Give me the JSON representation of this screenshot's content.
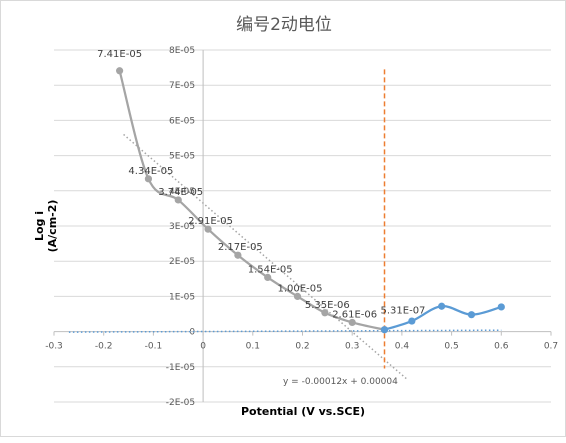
{
  "chart_data": {
    "type": "scatter",
    "title": "编号2动电位",
    "xlabel": "Potential  (V vs.SCE)",
    "ylabel_line1": "Log i",
    "ylabel_line2": "(A/cm-2)",
    "xlim": [
      -0.3,
      0.7
    ],
    "ylim": [
      -2e-05,
      8e-05
    ],
    "x_ticks": [
      -0.3,
      -0.2,
      -0.1,
      0,
      0.1,
      0.2,
      0.3,
      0.4,
      0.5,
      0.6,
      0.7
    ],
    "x_tick_labels": [
      "-0.3",
      "-0.2",
      "-0.1",
      "0",
      "0.1",
      "0.2",
      "0.3",
      "0.4",
      "0.5",
      "0.6",
      "0.7"
    ],
    "y_ticks": [
      -2e-05,
      -1e-05,
      0,
      1e-05,
      2e-05,
      3e-05,
      4e-05,
      5e-05,
      6e-05,
      7e-05,
      8e-05
    ],
    "y_tick_labels": [
      "-2E-05",
      "-1E-05",
      "0",
      "1E-05",
      "2E-05",
      "3E-05",
      "4E-05",
      "5E-05",
      "6E-05",
      "7E-05",
      "8E-05"
    ],
    "gridlines": "horizontal",
    "series": [
      {
        "color": "#a5a5a5",
        "x": [
          -0.168,
          -0.11,
          -0.05,
          0.01,
          0.07,
          0.13,
          0.19,
          0.245,
          0.3,
          0.365
        ],
        "y": [
          7.41e-05,
          4.34e-05,
          3.74e-05,
          2.91e-05,
          2.17e-05,
          1.54e-05,
          1e-05,
          5.35e-06,
          2.61e-06,
          5.31e-07
        ],
        "labels": [
          "7.41E-05",
          "4.34E-05",
          "3.74E-05",
          "2.91E-05",
          "2.17E-05",
          "1.54E-05",
          "1.00E-05",
          "5.35E-06",
          "2.61E-06",
          "5.31E-07"
        ]
      },
      {
        "color": "#5b9bd5",
        "x": [
          0.365,
          0.42,
          0.48,
          0.54,
          0.6
        ],
        "y": [
          5.31e-07,
          3e-06,
          7.2e-06,
          4.8e-06,
          7e-06
        ],
        "labels": []
      }
    ],
    "trendlines": [
      {
        "color": "#a5a5a5",
        "x": [
          -0.16,
          0.41
        ],
        "y": [
          5.6e-05,
          -1.35e-05
        ]
      },
      {
        "color": "#5b9bd5",
        "x": [
          -0.27,
          0.6
        ],
        "y": [
          -1.5e-07,
          4e-07
        ]
      }
    ],
    "trendline_equation": "y = -0.00012x + 0.00004",
    "vertical_marker": {
      "x": 0.365,
      "color": "#ed7d31",
      "y_range": [
        -1.05e-05,
        7.45e-05
      ]
    }
  }
}
